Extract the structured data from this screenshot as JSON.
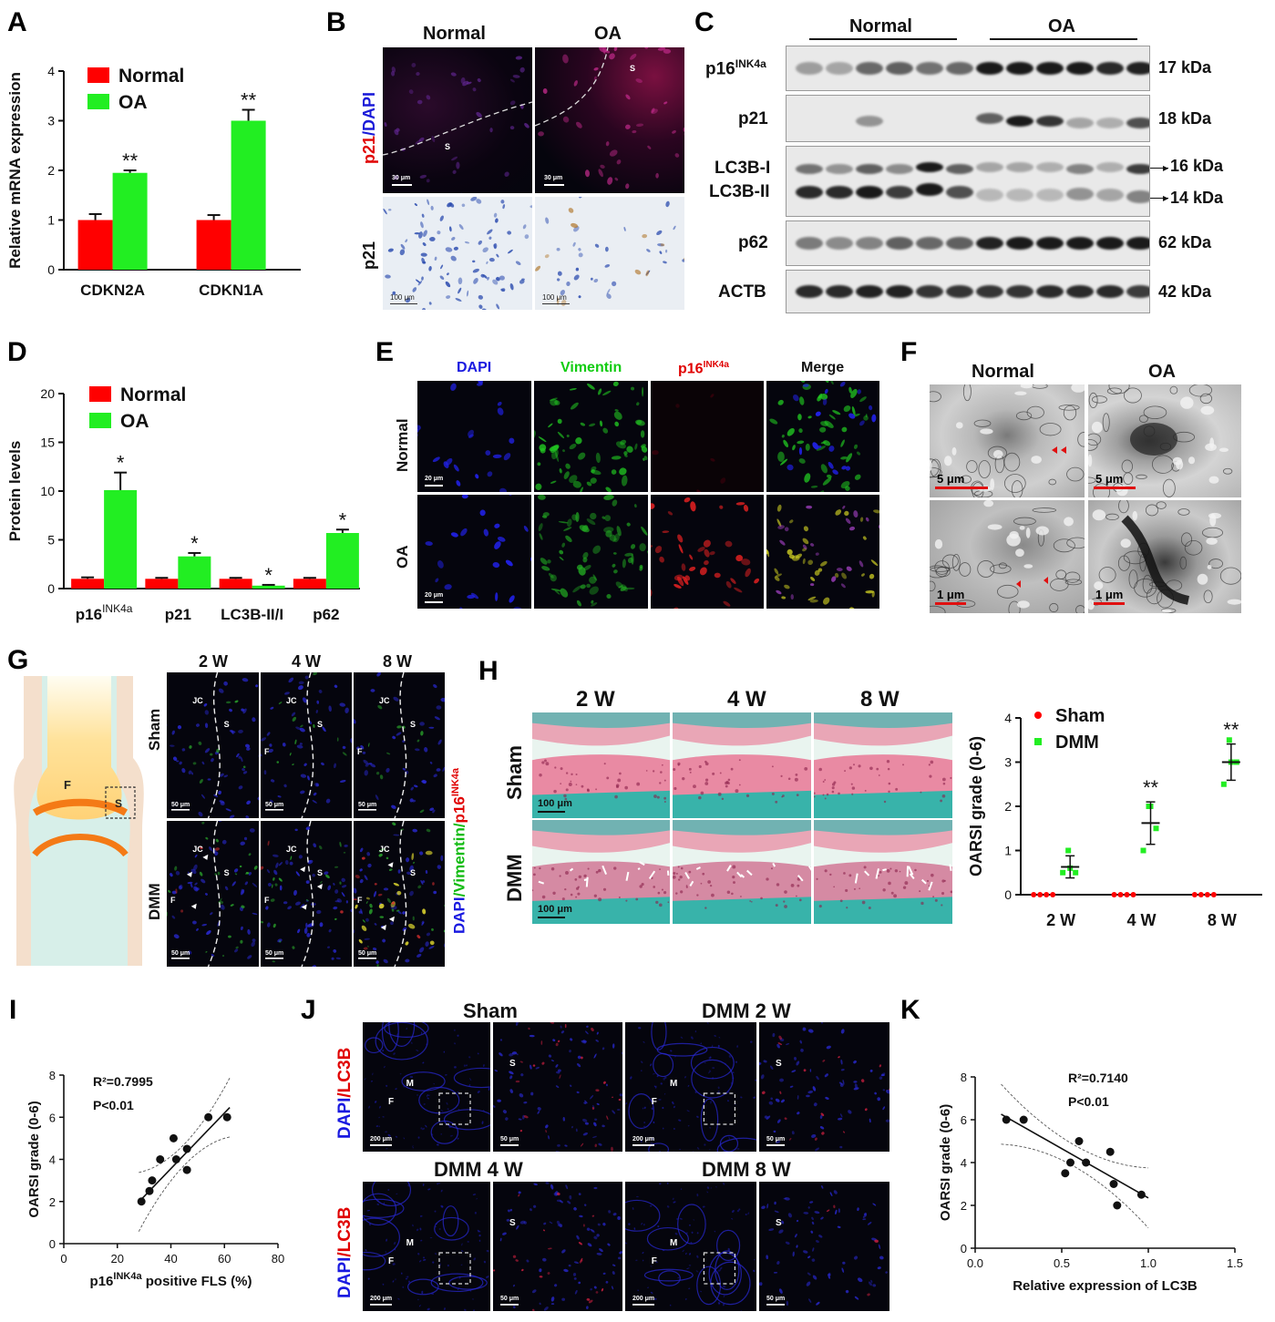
{
  "panels": {
    "A": {
      "letter": "A"
    },
    "B": {
      "letter": "B",
      "cols": [
        "Normal",
        "OA"
      ],
      "row1_label_a": "p21",
      "row1_label_b": "/DAPI",
      "row2_label": "p21",
      "scale_top": "30 μm",
      "scale_bottom": "100 μm",
      "region": "S"
    },
    "C": {
      "letter": "C",
      "groups": [
        "Normal",
        "OA"
      ],
      "rows": [
        {
          "name_main": "p16",
          "name_sup": "INK4a",
          "kda": "17 kDa"
        },
        {
          "name_main": "p21",
          "name_sup": "",
          "kda": "18 kDa"
        },
        {
          "name_main": "LC3B-I",
          "name_sup": "",
          "kda": "16 kDa"
        },
        {
          "name_main": "LC3B-II",
          "name_sup": "",
          "kda": "14 kDa"
        },
        {
          "name_main": "p62",
          "name_sup": "",
          "kda": "62 kDa"
        },
        {
          "name_main": "ACTB",
          "name_sup": "",
          "kda": "42 kDa"
        }
      ]
    },
    "D": {
      "letter": "D"
    },
    "E": {
      "letter": "E",
      "cols": [
        "DAPI",
        "Vimentin",
        "p16",
        "Merge"
      ],
      "col3_sup": "INK4a",
      "rows": [
        "Normal",
        "OA"
      ],
      "scale": "20 μm"
    },
    "F": {
      "letter": "F",
      "cols": [
        "Normal",
        "OA"
      ],
      "scale_top": "5 μm",
      "scale_bottom": "1 μm"
    },
    "G": {
      "letter": "G",
      "cols": [
        "2 W",
        "4 W",
        "8 W"
      ],
      "rows": [
        "Sham",
        "DMM"
      ],
      "scale": "50 μm",
      "side_label_a": "DAPI",
      "side_label_b": "/Vimentin/",
      "side_label_c": "p16",
      "side_label_sup": "INK4a",
      "joint_F": "F",
      "joint_S": "S",
      "tags": {
        "jc": "JC",
        "s": "S",
        "f": "F"
      }
    },
    "H": {
      "letter": "H",
      "cols": [
        "2 W",
        "4 W",
        "8 W"
      ],
      "rows": [
        "Sham",
        "DMM"
      ],
      "scale": "100 μm"
    },
    "I": {
      "letter": "I",
      "r2_label": "R²=0.7995",
      "p_label": "P<0.01"
    },
    "J": {
      "letter": "J",
      "titles": [
        "Sham",
        "DMM 2 W",
        "DMM 4 W",
        "DMM 8 W"
      ],
      "side_a": "DAPI",
      "side_b": "/LC3B",
      "scale_big": "200 μm",
      "scale_small": "50 μm",
      "tags": {
        "f": "F",
        "m": "M",
        "s": "S"
      }
    },
    "K": {
      "letter": "K",
      "r2_label": "R²=0.7140",
      "p_label": "P<0.01"
    }
  },
  "chart_data": [
    {
      "panel": "A",
      "type": "bar",
      "categories": [
        "CDKN2A",
        "CDKN1A"
      ],
      "series": [
        {
          "name": "Normal",
          "color": "#ff0000",
          "values": [
            1.0,
            1.0
          ],
          "errors": [
            0.12,
            0.1
          ]
        },
        {
          "name": "OA",
          "color": "#22ee22",
          "values": [
            1.95,
            3.0
          ],
          "errors": [
            0.05,
            0.22
          ]
        }
      ],
      "ylabel": "Relative mRNA expression",
      "ylim": [
        0,
        4
      ],
      "yticks": [
        "0",
        "1",
        "2",
        "3",
        "4"
      ],
      "annotations": [
        "**",
        "**"
      ],
      "legend": "top-left"
    },
    {
      "panel": "D",
      "type": "bar",
      "categories": [
        "p16INK4a",
        "p21",
        "LC3B-II/I",
        "p62"
      ],
      "category_labels": [
        {
          "main": "p16",
          "sup": "INK4a"
        },
        {
          "main": "p21",
          "sup": ""
        },
        {
          "main": "LC3B-II/I",
          "sup": ""
        },
        {
          "main": "p62",
          "sup": ""
        }
      ],
      "series": [
        {
          "name": "Normal",
          "color": "#ff0000",
          "values": [
            1.0,
            1.0,
            1.0,
            1.0
          ],
          "errors": [
            0.15,
            0.1,
            0.1,
            0.1
          ]
        },
        {
          "name": "OA",
          "color": "#22ee22",
          "values": [
            10.1,
            3.3,
            0.3,
            5.7
          ],
          "errors": [
            1.8,
            0.35,
            0.08,
            0.35
          ]
        }
      ],
      "ylabel": "Protein levels",
      "ylim": [
        0,
        20
      ],
      "yticks": [
        "0",
        "5",
        "10",
        "15",
        "20"
      ],
      "annotations": [
        "*",
        "*",
        "*",
        "*"
      ],
      "legend": "top-left"
    },
    {
      "panel": "H",
      "type": "scatter",
      "categories": [
        "2 W",
        "4 W",
        "8 W"
      ],
      "series": [
        {
          "name": "Sham",
          "color": "#ff0000",
          "points": [
            [
              0,
              0,
              0,
              0
            ],
            [
              0,
              0,
              0,
              0
            ],
            [
              0,
              0,
              0,
              0
            ]
          ]
        },
        {
          "name": "DMM",
          "color": "#22ee22",
          "points": [
            [
              0.5,
              0.5,
              0.6,
              1.0
            ],
            [
              1.0,
              1.5,
              2.0,
              2.0
            ],
            [
              2.5,
              3.0,
              3.0,
              3.5
            ]
          ],
          "mean": [
            0.63,
            1.62,
            3.0
          ],
          "sd": [
            0.25,
            0.48,
            0.41
          ]
        }
      ],
      "ylabel": "OARSI grade (0-6)",
      "ylim": [
        0,
        4
      ],
      "yticks": [
        "0",
        "1",
        "2",
        "3",
        "4"
      ],
      "annotations": [
        "",
        "**",
        "**"
      ],
      "legend": "top-left"
    },
    {
      "panel": "I",
      "type": "scatter",
      "points": [
        [
          29,
          2
        ],
        [
          32,
          2.5
        ],
        [
          33,
          3
        ],
        [
          36,
          4
        ],
        [
          41,
          5
        ],
        [
          42,
          4
        ],
        [
          46,
          4.5
        ],
        [
          46,
          3.5
        ],
        [
          54,
          6
        ],
        [
          61,
          6
        ]
      ],
      "fit": {
        "slope": 0.132,
        "intercept": -1.72
      },
      "xlabel_main": "p16",
      "xlabel_sup": "INK4a",
      "xlabel_rest": " positive FLS (%)",
      "ylabel": "OARSI grade (0-6)",
      "xlim": [
        0,
        80
      ],
      "ylim": [
        0,
        8
      ],
      "xticks": [
        "0",
        "20",
        "40",
        "60",
        "80"
      ],
      "yticks": [
        "0",
        "2",
        "4",
        "6",
        "8"
      ]
    },
    {
      "panel": "K",
      "type": "scatter",
      "points": [
        [
          0.18,
          6
        ],
        [
          0.28,
          6
        ],
        [
          0.52,
          3.5
        ],
        [
          0.55,
          4
        ],
        [
          0.6,
          5
        ],
        [
          0.64,
          4
        ],
        [
          0.78,
          4.5
        ],
        [
          0.8,
          3
        ],
        [
          0.82,
          2
        ],
        [
          0.96,
          2.5
        ]
      ],
      "fit": {
        "slope": -4.6,
        "intercept": 6.95
      },
      "xlabel": "Relative expression of LC3B",
      "ylabel": "OARSI grade (0-6)",
      "xlim": [
        0,
        1.5
      ],
      "ylim": [
        0,
        8
      ],
      "xticks": [
        "0.0",
        "0.5",
        "1.0",
        "1.5"
      ],
      "yticks": [
        "0",
        "2",
        "4",
        "6",
        "8"
      ]
    }
  ]
}
